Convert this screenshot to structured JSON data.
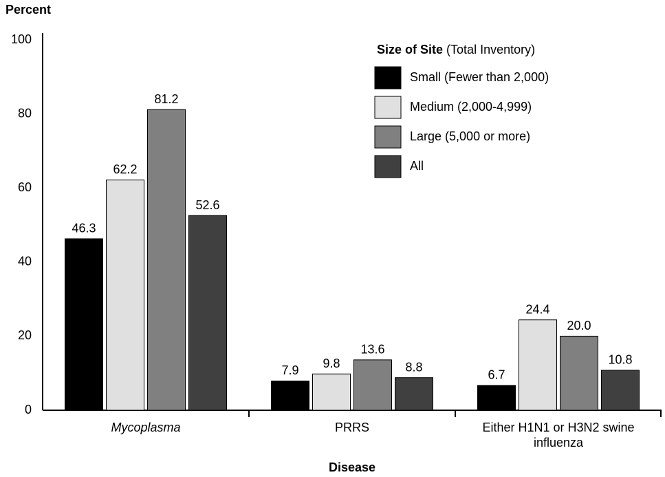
{
  "chart_data": {
    "type": "bar",
    "y_label": "Percent",
    "x_label": "Disease",
    "legend_title": "Size of Site",
    "legend_subtitle": "(Total Inventory)",
    "categories": [
      "Mycoplasma",
      "PRRS",
      "Either H1N1 or H3N2 swine influenza"
    ],
    "category_styles": [
      "italic",
      "normal",
      "normal"
    ],
    "series": [
      {
        "name": "Small (Fewer than 2,000)",
        "color": "#000000",
        "values": [
          46.3,
          7.9,
          6.7
        ],
        "value_labels": [
          "46.3",
          "7.9",
          "6.7"
        ]
      },
      {
        "name": "Medium (2,000-4,999)",
        "color": "#e0e0e0",
        "values": [
          62.2,
          9.8,
          24.4
        ],
        "value_labels": [
          "62.2",
          "9.8",
          "24.4"
        ]
      },
      {
        "name": "Large (5,000 or more)",
        "color": "#808080",
        "values": [
          81.2,
          13.6,
          20.0
        ],
        "value_labels": [
          "81.2",
          "13.6",
          "20.0"
        ]
      },
      {
        "name": "All",
        "color": "#404040",
        "values": [
          52.6,
          8.8,
          10.8
        ],
        "value_labels": [
          "52.6",
          "8.8",
          "10.8"
        ]
      }
    ],
    "ylim": [
      0,
      100
    ],
    "yticks": [
      0,
      20,
      40,
      60,
      80,
      100
    ],
    "grid": false
  }
}
